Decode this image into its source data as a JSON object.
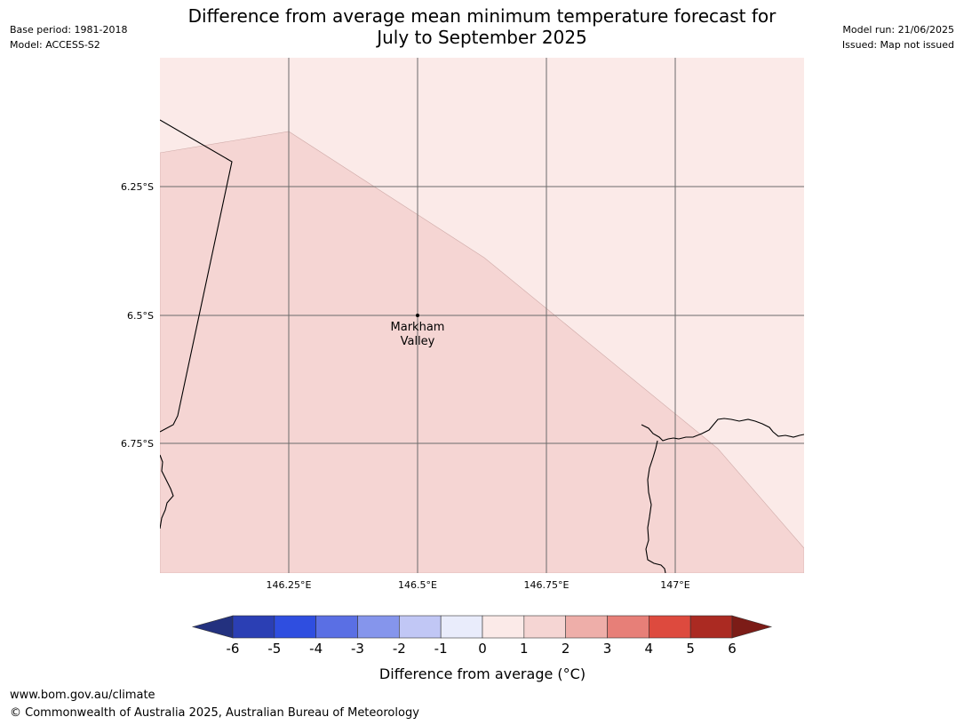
{
  "header": {
    "title_line1": "Difference from average mean minimum temperature forecast for",
    "title_line2": "July to September 2025",
    "base_period": "Base period: 1981-2018",
    "model": "Model: ACCESS-S2",
    "model_run": "Model run: 21/06/2025",
    "issued": "Issued: Map not issued"
  },
  "map": {
    "lat_labels": [
      "6.25°S",
      "6.5°S",
      "6.75°S"
    ],
    "lon_labels": [
      "146.25°E",
      "146.5°E",
      "146.75°E",
      "147°E"
    ],
    "place": {
      "name_line1": "Markham",
      "name_line2": "Valley"
    },
    "anomaly_colors": {
      "0_to_1": "#fbeae8",
      "1_to_2": "#f5d5d3"
    },
    "region_values_degC": {
      "north_east": "0 to 1",
      "south_west": "1 to 2"
    }
  },
  "colorbar": {
    "label": "Difference from average (°C)",
    "ticks": [
      "-6",
      "-5",
      "-4",
      "-3",
      "-2",
      "-1",
      "0",
      "1",
      "2",
      "3",
      "4",
      "5",
      "6"
    ],
    "colors": [
      "#23317f",
      "#2b3fb4",
      "#2f4ee0",
      "#5a6fe4",
      "#8595ec",
      "#c1c7f5",
      "#e9ecfb",
      "#fbeae8",
      "#f5d5d3",
      "#eeaea9",
      "#e77f78",
      "#dd4a3e",
      "#ab2a22",
      "#7c1c17"
    ]
  },
  "footer": {
    "url": "www.bom.gov.au/climate",
    "copyright": "© Commonwealth of Australia 2025, Australian Bureau of Meteorology"
  }
}
